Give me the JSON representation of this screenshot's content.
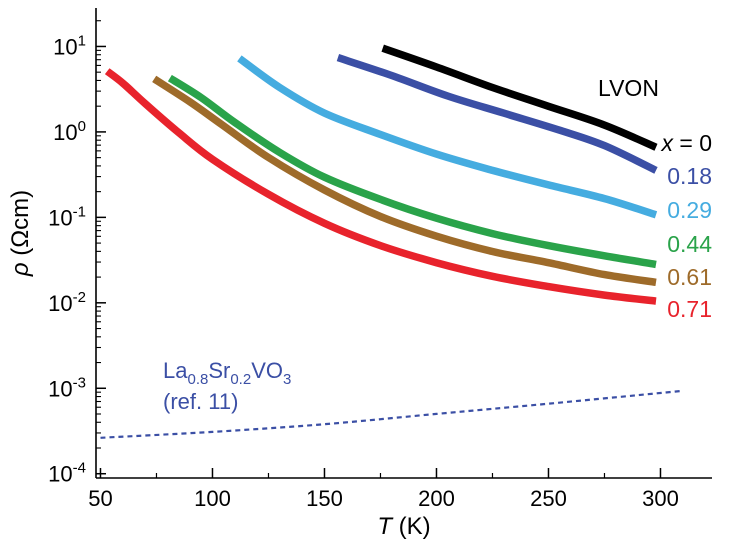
{
  "chart_data": {
    "type": "line",
    "xlabel": "T (K)",
    "ylabel": "ρ (Ωcm)",
    "xlim": [
      48,
      323
    ],
    "ylim_log10": [
      -4.05,
      1.45
    ],
    "y_scale": "log",
    "grid": false,
    "x_ticks": [
      {
        "value": 50,
        "label": "50"
      },
      {
        "value": 100,
        "label": "100"
      },
      {
        "value": 150,
        "label": "150"
      },
      {
        "value": 200,
        "label": "200"
      },
      {
        "value": 250,
        "label": "250"
      },
      {
        "value": 300,
        "label": "300"
      }
    ],
    "y_ticks": [
      {
        "value": 1,
        "exp": "1"
      },
      {
        "value": 0,
        "exp": "0"
      },
      {
        "value": -1,
        "exp": "-1"
      },
      {
        "value": -2,
        "exp": "-2"
      },
      {
        "value": -3,
        "exp": "-3"
      },
      {
        "value": -4,
        "exp": "-4"
      }
    ],
    "annotations": {
      "sample": "LVON",
      "x_prefix": "x",
      "x_equals": " = ",
      "ref_compound": "La0.8Sr0.2VO3",
      "ref_note": "(ref. 11)"
    },
    "series": [
      {
        "label": "0",
        "color": "#000000",
        "points": [
          [
            176,
            0.98
          ],
          [
            200,
            0.76
          ],
          [
            225,
            0.52
          ],
          [
            250,
            0.3
          ],
          [
            275,
            0.08
          ],
          [
            298,
            -0.18
          ]
        ]
      },
      {
        "label": "0.18",
        "color": "#3b4fa5",
        "points": [
          [
            156,
            0.87
          ],
          [
            180,
            0.66
          ],
          [
            205,
            0.42
          ],
          [
            230,
            0.22
          ],
          [
            255,
            0.02
          ],
          [
            275,
            -0.16
          ],
          [
            298,
            -0.45
          ]
        ]
      },
      {
        "label": "0.29",
        "color": "#45ace0",
        "points": [
          [
            112,
            0.86
          ],
          [
            130,
            0.52
          ],
          [
            150,
            0.22
          ],
          [
            175,
            -0.03
          ],
          [
            200,
            -0.26
          ],
          [
            225,
            -0.45
          ],
          [
            250,
            -0.62
          ],
          [
            275,
            -0.78
          ],
          [
            298,
            -0.97
          ]
        ]
      },
      {
        "label": "0.44",
        "color": "#2aa34a",
        "points": [
          [
            81,
            0.63
          ],
          [
            95,
            0.4
          ],
          [
            110,
            0.11
          ],
          [
            130,
            -0.24
          ],
          [
            150,
            -0.53
          ],
          [
            175,
            -0.79
          ],
          [
            200,
            -1.01
          ],
          [
            225,
            -1.19
          ],
          [
            250,
            -1.33
          ],
          [
            275,
            -1.45
          ],
          [
            298,
            -1.55
          ]
        ]
      },
      {
        "label": "0.61",
        "color": "#9e6b2a",
        "points": [
          [
            74,
            0.62
          ],
          [
            90,
            0.35
          ],
          [
            105,
            0.07
          ],
          [
            125,
            -0.3
          ],
          [
            150,
            -0.68
          ],
          [
            175,
            -0.99
          ],
          [
            200,
            -1.22
          ],
          [
            225,
            -1.4
          ],
          [
            250,
            -1.53
          ],
          [
            275,
            -1.67
          ],
          [
            298,
            -1.76
          ]
        ]
      },
      {
        "label": "0.71",
        "color": "#e8232c",
        "points": [
          [
            53,
            0.71
          ],
          [
            60,
            0.57
          ],
          [
            70,
            0.33
          ],
          [
            85,
            -0.01
          ],
          [
            100,
            -0.32
          ],
          [
            125,
            -0.73
          ],
          [
            150,
            -1.07
          ],
          [
            175,
            -1.33
          ],
          [
            200,
            -1.53
          ],
          [
            225,
            -1.69
          ],
          [
            250,
            -1.81
          ],
          [
            275,
            -1.91
          ],
          [
            298,
            -1.98
          ]
        ]
      }
    ],
    "reference": {
      "label": "La0.8Sr0.2VO3 (ref. 11)",
      "color": "#3b4fa5",
      "style": "dotted",
      "points": [
        [
          50,
          -3.58
        ],
        [
          100,
          -3.51
        ],
        [
          150,
          -3.42
        ],
        [
          200,
          -3.3
        ],
        [
          250,
          -3.18
        ],
        [
          310,
          -3.03
        ]
      ]
    }
  }
}
